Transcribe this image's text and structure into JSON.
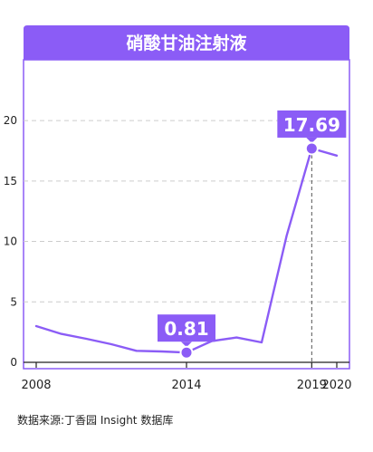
{
  "chart_data": {
    "type": "line",
    "title": "硝酸甘油注射液",
    "x": [
      2008,
      2009,
      2010,
      2011,
      2012,
      2013,
      2014,
      2015,
      2016,
      2017,
      2018,
      2019,
      2020
    ],
    "series": [
      {
        "values": [
          3.0,
          2.35,
          1.95,
          1.5,
          0.95,
          0.9,
          0.81,
          1.75,
          2.05,
          1.65,
          10.5,
          17.69,
          17.1
        ]
      }
    ],
    "xticks": [
      "2008",
      "2014",
      "2019",
      "2020"
    ],
    "yticks": [
      "0",
      "5",
      "10",
      "15",
      "20"
    ],
    "ylim": [
      0,
      25
    ],
    "grid": true,
    "annotations": [
      {
        "x": 2014,
        "value": 0.81,
        "label": "0.81"
      },
      {
        "x": 2019,
        "value": 17.69,
        "label": "17.69"
      }
    ],
    "colors": {
      "accent": "#8b5cf6",
      "header": "#8b5cf6",
      "grid": "#cccccc",
      "axis": "#222222"
    }
  },
  "footer": "数据来源:丁香园 Insight 数据库"
}
